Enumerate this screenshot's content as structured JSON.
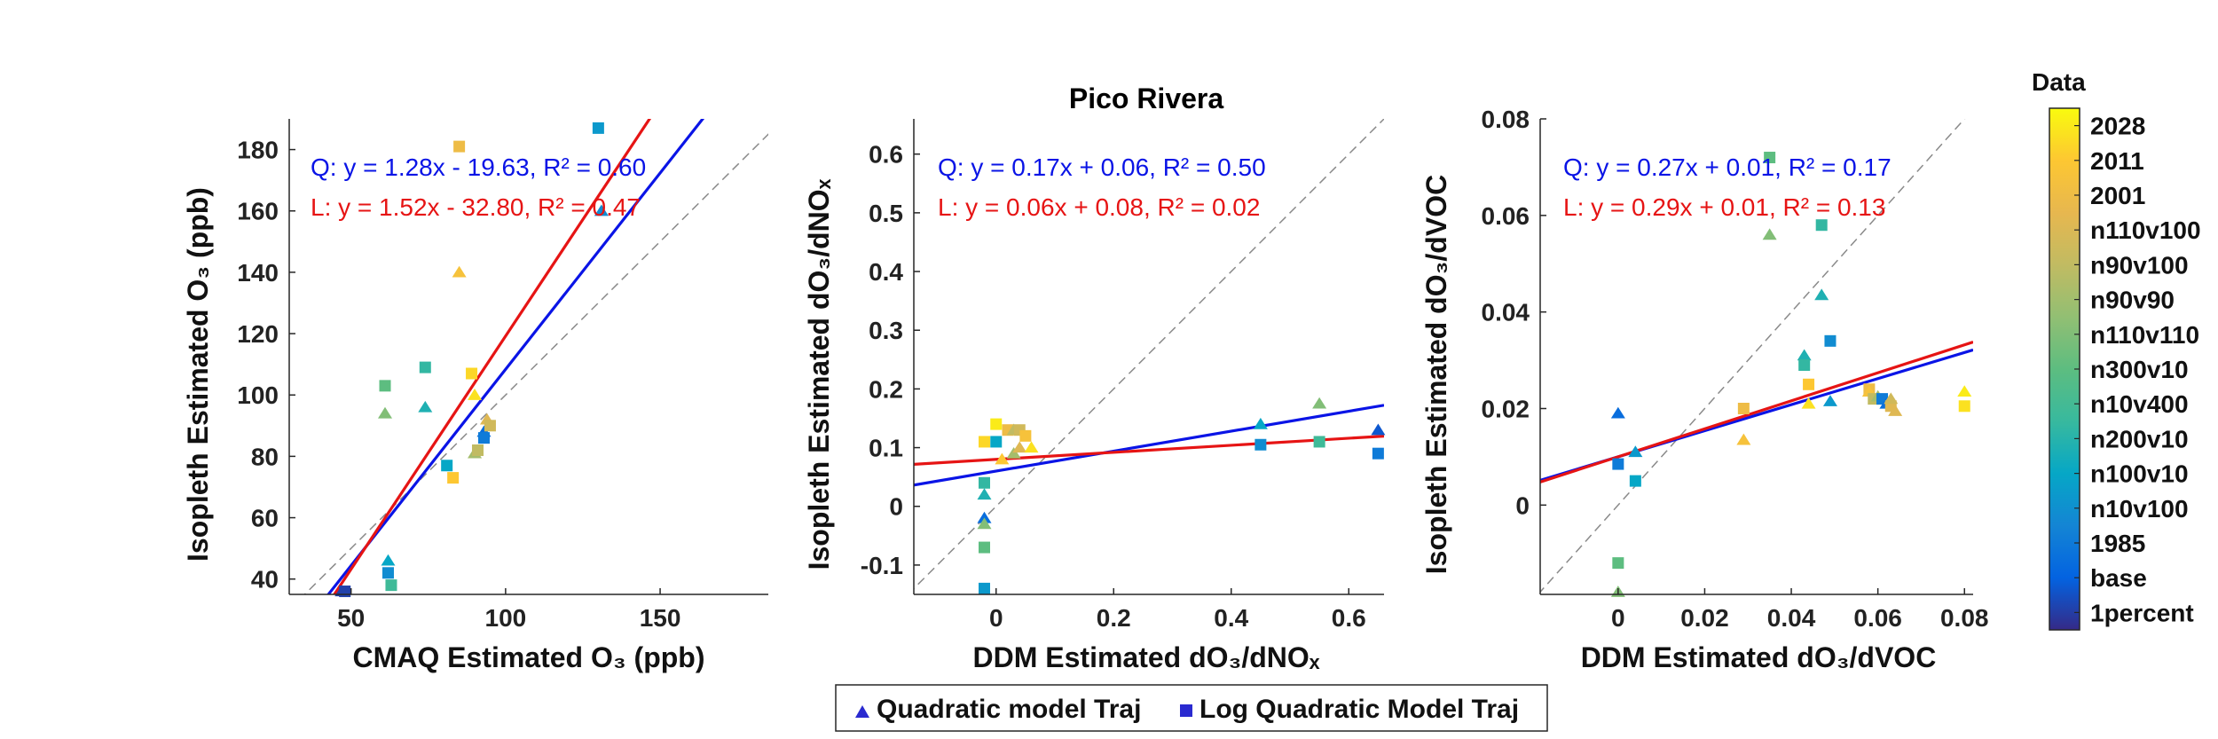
{
  "figure_title": "Pico Rivera",
  "colors": {
    "quadratic_fit": "#0a14e6",
    "log_fit": "#e61414",
    "identity": "#8a8a8a",
    "axis": "#262626"
  },
  "chart_data": [
    {
      "type": "scatter",
      "title": "",
      "xlabel": "CMAQ Estimated O₃ (ppb)",
      "ylabel": "Isopleth Estimated O₃ (ppb)",
      "xlim": [
        30,
        185
      ],
      "ylim": [
        35,
        190
      ],
      "xticks": [
        50,
        100,
        150
      ],
      "yticks": [
        40,
        60,
        80,
        100,
        120,
        140,
        160,
        180
      ],
      "tick_labels_x": [
        "50",
        "100",
        "150"
      ],
      "tick_labels_y": [
        "40",
        "60",
        "80",
        "100",
        "120",
        "140",
        "160",
        "180"
      ],
      "fits": {
        "quadratic": {
          "equation": "Q: y = 1.28x - 19.63, R² = 0.60",
          "slope": 1.28,
          "intercept": -19.63
        },
        "log": {
          "equation": "L: y = 1.52x - 32.80, R² = 0.47",
          "slope": 1.52,
          "intercept": -32.8
        }
      },
      "points": [
        {
          "model": "quadratic",
          "x": 47,
          "y": 36,
          "c": 0.04
        },
        {
          "model": "log",
          "x": 48,
          "y": 36,
          "c": 0.04
        },
        {
          "model": "quadratic",
          "x": 62,
          "y": 46,
          "c": 0.3
        },
        {
          "model": "log",
          "x": 62,
          "y": 42,
          "c": 0.22
        },
        {
          "model": "log",
          "x": 63,
          "y": 38,
          "c": 0.42
        },
        {
          "model": "log",
          "x": 61,
          "y": 103,
          "c": 0.5
        },
        {
          "model": "quadratic",
          "x": 61,
          "y": 94,
          "c": 0.57
        },
        {
          "model": "quadratic",
          "x": 74,
          "y": 96,
          "c": 0.35
        },
        {
          "model": "log",
          "x": 74,
          "y": 109,
          "c": 0.39
        },
        {
          "model": "log",
          "x": 81,
          "y": 77,
          "c": 0.3
        },
        {
          "model": "log",
          "x": 83,
          "y": 73,
          "c": 0.9
        },
        {
          "model": "log",
          "x": 85,
          "y": 181,
          "c": 0.83
        },
        {
          "model": "quadratic",
          "x": 85,
          "y": 140,
          "c": 0.87
        },
        {
          "model": "log",
          "x": 89,
          "y": 107,
          "c": 0.93
        },
        {
          "model": "quadratic",
          "x": 90,
          "y": 100,
          "c": 0.95
        },
        {
          "model": "quadratic",
          "x": 90,
          "y": 81,
          "c": 0.64
        },
        {
          "model": "log",
          "x": 91,
          "y": 82,
          "c": 0.7
        },
        {
          "model": "quadratic",
          "x": 93,
          "y": 88,
          "c": 0.13
        },
        {
          "model": "log",
          "x": 93,
          "y": 86,
          "c": 0.17
        },
        {
          "model": "quadratic",
          "x": 94,
          "y": 92,
          "c": 0.78
        },
        {
          "model": "log",
          "x": 95,
          "y": 90,
          "c": 0.74
        },
        {
          "model": "log",
          "x": 130,
          "y": 187,
          "c": 0.26
        },
        {
          "model": "quadratic",
          "x": 131,
          "y": 160,
          "c": 0.22
        }
      ]
    },
    {
      "type": "scatter",
      "title": "Pico Rivera",
      "xlabel": "DDM Estimated dO₃/dNOₓ",
      "ylabel": "Isopleth Estimated dO₃/dNOₓ",
      "xlim": [
        -0.14,
        0.66
      ],
      "ylim": [
        -0.15,
        0.66
      ],
      "xticks": [
        0,
        0.2,
        0.4,
        0.6
      ],
      "yticks": [
        -0.1,
        0,
        0.1,
        0.2,
        0.3,
        0.4,
        0.5,
        0.6
      ],
      "tick_labels_x": [
        "0",
        "0.2",
        "0.4",
        "0.6"
      ],
      "tick_labels_y": [
        "-0.1",
        "0",
        "0.1",
        "0.2",
        "0.3",
        "0.4",
        "0.5",
        "0.6"
      ],
      "fits": {
        "quadratic": {
          "equation": "Q: y = 0.17x + 0.06, R² = 0.50",
          "slope": 0.17,
          "intercept": 0.06
        },
        "log": {
          "equation": "L: y = 0.06x + 0.08, R² = 0.02",
          "slope": 0.06,
          "intercept": 0.08
        }
      },
      "points": [
        {
          "model": "log",
          "x": -0.02,
          "y": -0.14,
          "c": 0.26
        },
        {
          "model": "quadratic",
          "x": -0.02,
          "y": -0.02,
          "c": 0.13
        },
        {
          "model": "log",
          "x": -0.02,
          "y": -0.07,
          "c": 0.5
        },
        {
          "model": "quadratic",
          "x": -0.02,
          "y": -0.03,
          "c": 0.57
        },
        {
          "model": "quadratic",
          "x": -0.02,
          "y": 0.02,
          "c": 0.35
        },
        {
          "model": "log",
          "x": -0.02,
          "y": 0.04,
          "c": 0.39
        },
        {
          "model": "log",
          "x": -0.02,
          "y": 0.11,
          "c": 0.93
        },
        {
          "model": "log",
          "x": 0.0,
          "y": 0.14,
          "c": 0.97
        },
        {
          "model": "log",
          "x": 0.0,
          "y": 0.11,
          "c": 0.3
        },
        {
          "model": "quadratic",
          "x": 0.01,
          "y": 0.08,
          "c": 0.9
        },
        {
          "model": "log",
          "x": 0.02,
          "y": 0.13,
          "c": 0.83
        },
        {
          "model": "quadratic",
          "x": 0.03,
          "y": 0.13,
          "c": 0.7
        },
        {
          "model": "log",
          "x": 0.04,
          "y": 0.13,
          "c": 0.74
        },
        {
          "model": "quadratic",
          "x": 0.03,
          "y": 0.09,
          "c": 0.64
        },
        {
          "model": "quadratic",
          "x": 0.04,
          "y": 0.1,
          "c": 0.78
        },
        {
          "model": "log",
          "x": 0.05,
          "y": 0.12,
          "c": 0.87
        },
        {
          "model": "quadratic",
          "x": 0.06,
          "y": 0.1,
          "c": 0.95
        },
        {
          "model": "quadratic",
          "x": 0.45,
          "y": 0.14,
          "c": 0.3
        },
        {
          "model": "log",
          "x": 0.45,
          "y": 0.105,
          "c": 0.22
        },
        {
          "model": "quadratic",
          "x": 0.55,
          "y": 0.175,
          "c": 0.57
        },
        {
          "model": "log",
          "x": 0.55,
          "y": 0.11,
          "c": 0.42
        },
        {
          "model": "quadratic",
          "x": 0.65,
          "y": 0.13,
          "c": 0.08
        },
        {
          "model": "log",
          "x": 0.65,
          "y": 0.09,
          "c": 0.17
        }
      ]
    },
    {
      "type": "scatter",
      "title": "",
      "xlabel": "DDM Estimated dO₃/dVOC",
      "ylabel": "Isopleth Estimated dO₃/dVOC",
      "xlim": [
        -0.018,
        0.082
      ],
      "ylim": [
        -0.0185,
        0.08
      ],
      "xticks": [
        0,
        0.02,
        0.04,
        0.06,
        0.08
      ],
      "yticks": [
        0,
        0.02,
        0.04,
        0.06,
        0.08
      ],
      "tick_labels_x": [
        "0",
        "0.02",
        "0.04",
        "0.06",
        "0.08"
      ],
      "tick_labels_y": [
        "0",
        "0.02",
        "0.04",
        "0.06",
        "0.08"
      ],
      "fits": {
        "quadratic": {
          "equation": "Q: y = 0.27x + 0.01, R² = 0.17",
          "slope": 0.27,
          "intercept": 0.01
        },
        "log": {
          "equation": "L: y = 0.29x + 0.01, R² = 0.13",
          "slope": 0.29,
          "intercept": 0.01
        }
      },
      "points": [
        {
          "model": "quadratic",
          "x": 0.0,
          "y": -0.018,
          "c": 0.57
        },
        {
          "model": "log",
          "x": 0.0,
          "y": -0.012,
          "c": 0.5
        },
        {
          "model": "quadratic",
          "x": 0.0,
          "y": 0.019,
          "c": 0.13
        },
        {
          "model": "log",
          "x": 0.0,
          "y": 0.0085,
          "c": 0.17
        },
        {
          "model": "quadratic",
          "x": 0.004,
          "y": 0.011,
          "c": 0.26
        },
        {
          "model": "log",
          "x": 0.004,
          "y": 0.005,
          "c": 0.3
        },
        {
          "model": "quadratic",
          "x": 0.029,
          "y": 0.0135,
          "c": 0.87
        },
        {
          "model": "log",
          "x": 0.029,
          "y": 0.02,
          "c": 0.83
        },
        {
          "model": "quadratic",
          "x": 0.035,
          "y": 0.056,
          "c": 0.57
        },
        {
          "model": "log",
          "x": 0.035,
          "y": 0.072,
          "c": 0.5
        },
        {
          "model": "quadratic",
          "x": 0.043,
          "y": 0.031,
          "c": 0.35
        },
        {
          "model": "log",
          "x": 0.043,
          "y": 0.029,
          "c": 0.39
        },
        {
          "model": "quadratic",
          "x": 0.044,
          "y": 0.021,
          "c": 0.95
        },
        {
          "model": "log",
          "x": 0.044,
          "y": 0.025,
          "c": 0.9
        },
        {
          "model": "quadratic",
          "x": 0.047,
          "y": 0.0435,
          "c": 0.35
        },
        {
          "model": "log",
          "x": 0.047,
          "y": 0.058,
          "c": 0.39
        },
        {
          "model": "log",
          "x": 0.049,
          "y": 0.034,
          "c": 0.22
        },
        {
          "model": "quadratic",
          "x": 0.049,
          "y": 0.0215,
          "c": 0.26
        },
        {
          "model": "log",
          "x": 0.058,
          "y": 0.024,
          "c": 0.83
        },
        {
          "model": "quadratic",
          "x": 0.058,
          "y": 0.0235,
          "c": 0.87
        },
        {
          "model": "log",
          "x": 0.059,
          "y": 0.022,
          "c": 0.7
        },
        {
          "model": "quadratic",
          "x": 0.06,
          "y": 0.0225,
          "c": 0.64
        },
        {
          "model": "log",
          "x": 0.061,
          "y": 0.022,
          "c": 0.17
        },
        {
          "model": "quadratic",
          "x": 0.062,
          "y": 0.021,
          "c": 0.13
        },
        {
          "model": "log",
          "x": 0.063,
          "y": 0.0205,
          "c": 0.78
        },
        {
          "model": "quadratic",
          "x": 0.063,
          "y": 0.022,
          "c": 0.74
        },
        {
          "model": "quadratic",
          "x": 0.064,
          "y": 0.0195,
          "c": 0.78
        },
        {
          "model": "quadratic",
          "x": 0.08,
          "y": 0.0235,
          "c": 0.97
        },
        {
          "model": "log",
          "x": 0.08,
          "y": 0.0205,
          "c": 0.95
        }
      ]
    }
  ],
  "colorbar": {
    "title": "Data",
    "categories": [
      "2028",
      "2011",
      "2001",
      "n110v100",
      "n90v100",
      "n90v90",
      "n110v110",
      "n300v10",
      "n10v400",
      "n200v10",
      "n100v10",
      "n10v100",
      "1985",
      "base",
      "1percent"
    ]
  },
  "legend": {
    "placement": "bottom-center",
    "items": [
      {
        "marker": "triangle",
        "label": "Quadratic model Traj",
        "color": "#2a2ad0"
      },
      {
        "marker": "square",
        "label": "Log Quadratic Model Traj",
        "color": "#2a2ad0"
      }
    ]
  }
}
